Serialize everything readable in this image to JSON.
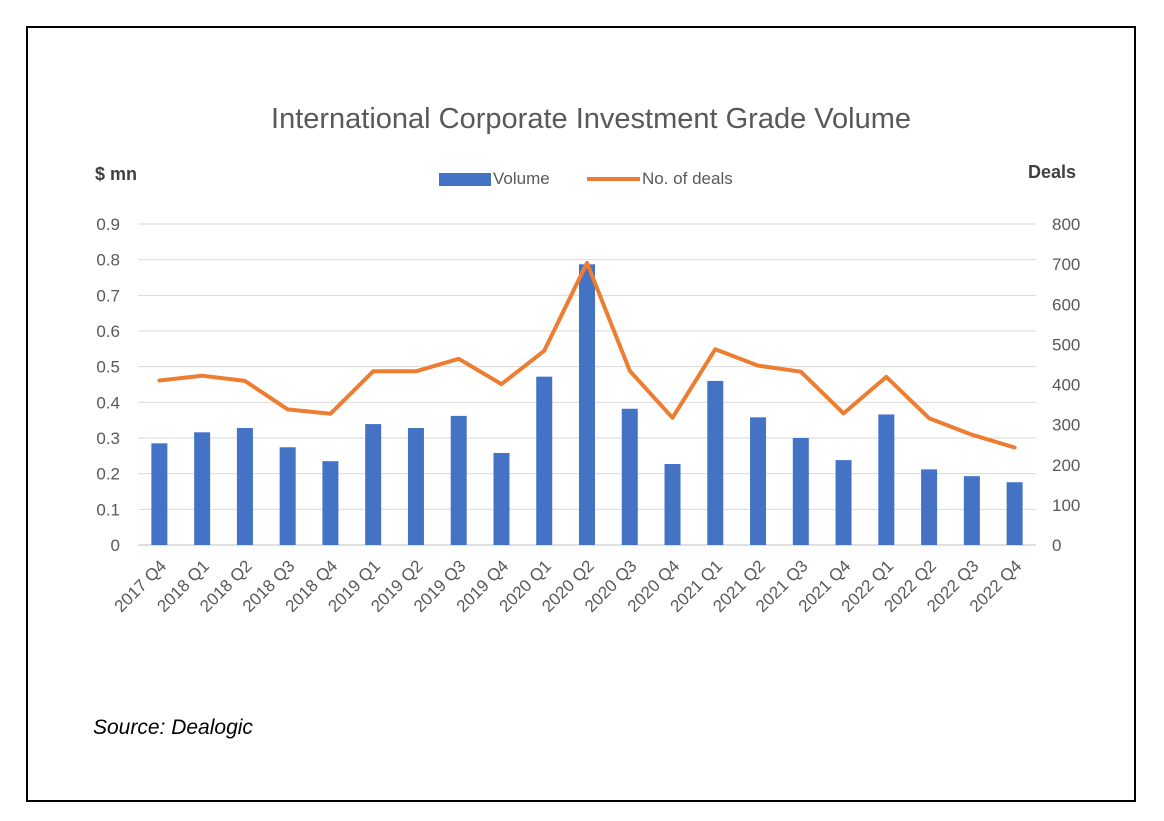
{
  "chart_data": {
    "type": "bar+line",
    "title": "International Corporate Investment Grade Volume",
    "ylabel_left": "$ mn",
    "ylabel_right": "Deals",
    "source": "Source: Dealogic",
    "legend_position": "top-center",
    "grid": true,
    "categories": [
      "2017 Q4",
      "2018 Q1",
      "2018 Q2",
      "2018 Q3",
      "2018 Q4",
      "2019 Q1",
      "2019 Q2",
      "2019 Q3",
      "2019 Q4",
      "2020 Q1",
      "2020 Q2",
      "2020 Q3",
      "2020 Q4",
      "2021 Q1",
      "2021 Q2",
      "2021 Q3",
      "2021 Q4",
      "2022 Q1",
      "2022 Q2",
      "2022 Q3",
      "2022 Q4"
    ],
    "y_left_ticks": [
      "0",
      "0.1",
      "0.2",
      "0.3",
      "0.4",
      "0.5",
      "0.6",
      "0.7",
      "0.8",
      "0.9"
    ],
    "y_right_ticks": [
      "0",
      "100",
      "200",
      "300",
      "400",
      "500",
      "600",
      "700",
      "800"
    ],
    "ylim_left": [
      0,
      0.9
    ],
    "ylim_right": [
      0,
      800
    ],
    "series": [
      {
        "name": "Volume",
        "type": "bar",
        "axis": "left",
        "color": "#4472C4",
        "values": [
          0.285,
          0.316,
          0.328,
          0.274,
          0.235,
          0.339,
          0.328,
          0.362,
          0.258,
          0.472,
          0.787,
          0.382,
          0.227,
          0.46,
          0.358,
          0.3,
          0.238,
          0.366,
          0.212,
          0.193,
          0.176
        ]
      },
      {
        "name": "No. of deals",
        "type": "line",
        "axis": "right",
        "color": "#ED7D31",
        "values": [
          410,
          422,
          409,
          338,
          327,
          433,
          433,
          464,
          401,
          484,
          703,
          434,
          317,
          488,
          447,
          432,
          328,
          419,
          316,
          275,
          243
        ]
      }
    ]
  }
}
